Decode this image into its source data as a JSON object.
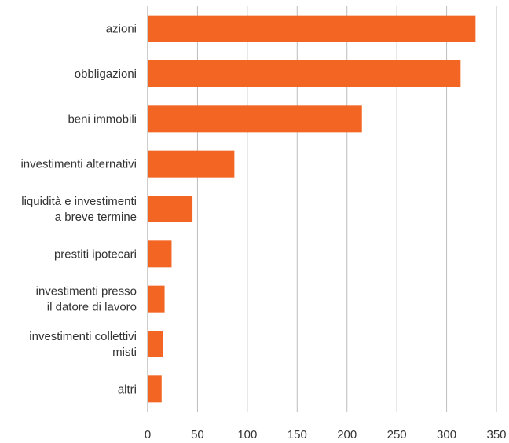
{
  "chart_data": {
    "type": "bar",
    "orientation": "horizontal",
    "categories": [
      [
        "azioni"
      ],
      [
        "obbligazioni"
      ],
      [
        "beni immobili"
      ],
      [
        "investimenti alternativi"
      ],
      [
        "liquidità e investimenti",
        "a breve termine"
      ],
      [
        "prestiti ipotecari"
      ],
      [
        "investimenti presso",
        "il datore di lavoro"
      ],
      [
        "investimenti collettivi",
        "misti"
      ],
      [
        "altri"
      ]
    ],
    "values": [
      329,
      314,
      215,
      87,
      45,
      24,
      17,
      15,
      14
    ],
    "xlim": [
      0,
      350
    ],
    "xticks": [
      0,
      50,
      100,
      150,
      200,
      250,
      300,
      350
    ],
    "grid": true,
    "title": "",
    "xlabel": "",
    "ylabel": "",
    "bar_color": "#f26522",
    "grid_color": "#bdbdbd"
  }
}
